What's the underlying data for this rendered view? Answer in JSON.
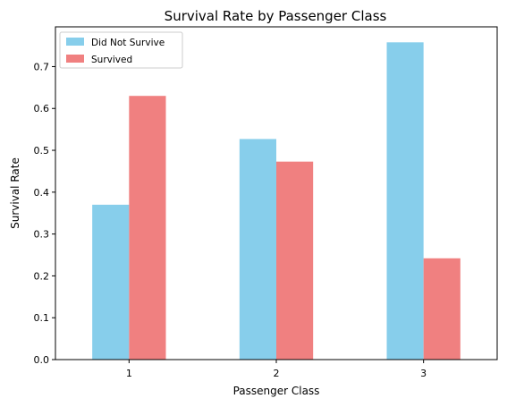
{
  "chart_data": {
    "type": "bar",
    "title": "Survival Rate by Passenger Class",
    "xlabel": "Passenger Class",
    "ylabel": "Survival Rate",
    "categories": [
      "1",
      "2",
      "3"
    ],
    "series": [
      {
        "name": "Did Not Survive",
        "color": "#87ceeb",
        "values": [
          0.37,
          0.527,
          0.758
        ]
      },
      {
        "name": "Survived",
        "color": "#f08080",
        "values": [
          0.63,
          0.473,
          0.242
        ]
      }
    ],
    "ylim": [
      0,
      0.795
    ],
    "yticks": [
      0.0,
      0.1,
      0.2,
      0.3,
      0.4,
      0.5,
      0.6,
      0.7
    ],
    "ytick_labels": [
      "0.0",
      "0.1",
      "0.2",
      "0.3",
      "0.4",
      "0.5",
      "0.6",
      "0.7"
    ],
    "legend": "top-left",
    "grid": false
  }
}
